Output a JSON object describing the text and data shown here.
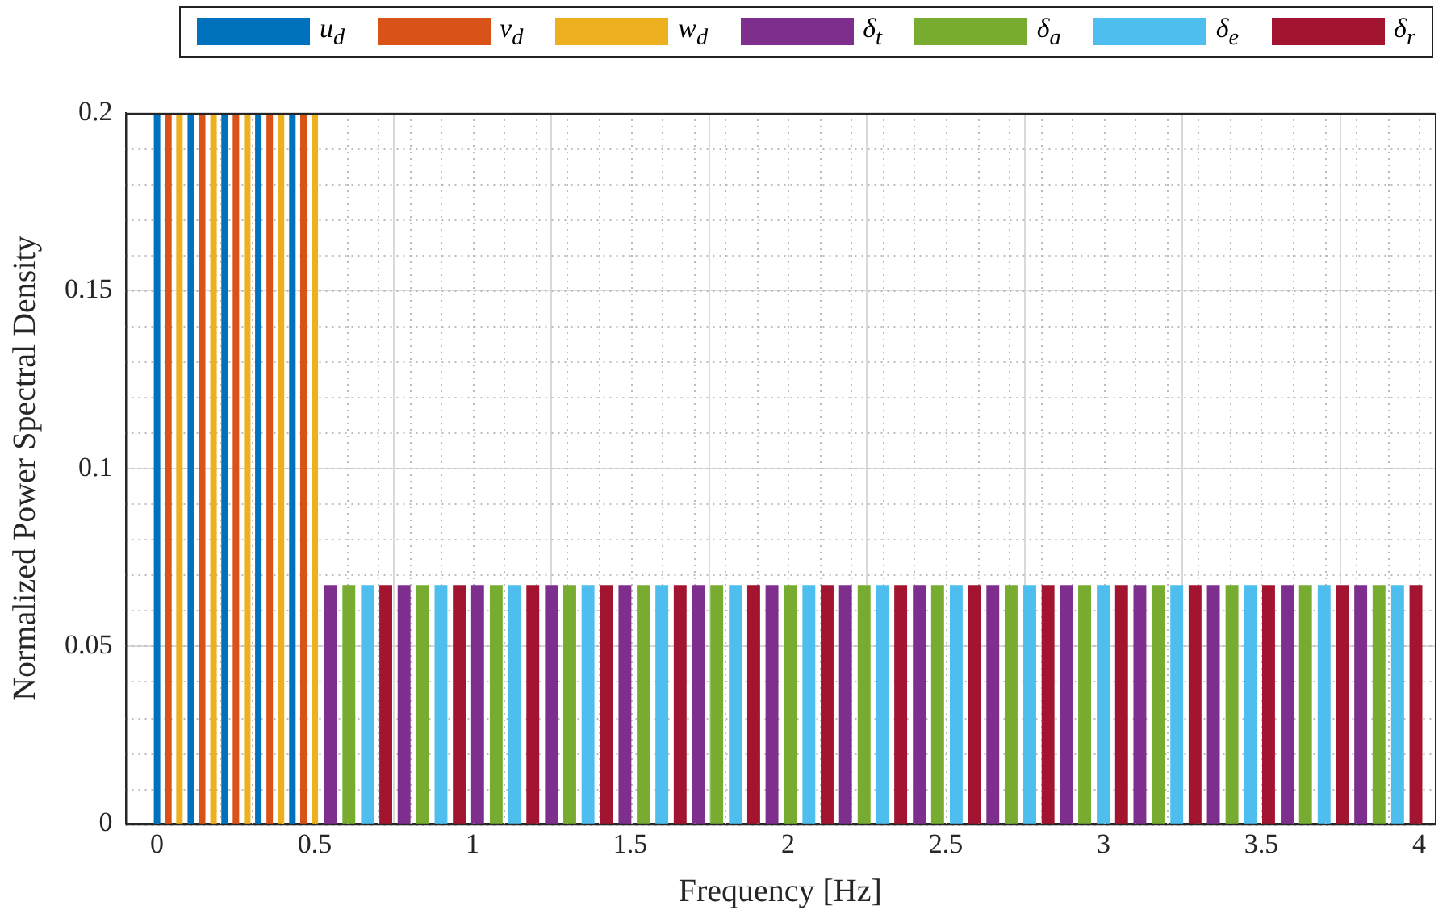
{
  "chart_data": {
    "type": "bar",
    "xlabel": "Frequency [Hz]",
    "ylabel": "Normalized Power Spectral Density",
    "xlim": [
      -0.1,
      4.05
    ],
    "ylim": [
      0,
      0.2
    ],
    "xticks": [
      0,
      0.5,
      1,
      1.5,
      2,
      2.5,
      3,
      3.5,
      4
    ],
    "yticks": [
      0,
      0.05,
      0.1,
      0.15,
      0.2
    ],
    "grid": true,
    "legend": "top",
    "series": [
      {
        "name": "u$_{d}$",
        "color": "#0072bd",
        "x": [
          0,
          0.107,
          0.214,
          0.321,
          0.429
        ],
        "values": [
          0.2,
          0.2,
          0.2,
          0.2,
          0.2
        ]
      },
      {
        "name": "v$_{d}$",
        "color": "#d95319",
        "x": [
          0.036,
          0.143,
          0.25,
          0.357,
          0.464
        ],
        "values": [
          0.2,
          0.2,
          0.2,
          0.2,
          0.2
        ]
      },
      {
        "name": "w$_{d}$",
        "color": "#edb120",
        "x": [
          0.071,
          0.179,
          0.286,
          0.393,
          0.5
        ],
        "values": [
          0.2,
          0.2,
          0.2,
          0.2,
          0.2
        ]
      },
      {
        "name": "δ$_{t}$",
        "color": "#7e2f8e",
        "x": [
          0.55,
          0.783,
          1.016,
          1.25,
          1.483,
          1.716,
          1.949,
          2.182,
          2.416,
          2.649,
          2.882,
          3.115,
          3.348,
          3.582,
          3.815
        ],
        "values": [
          0.067,
          0.067,
          0.067,
          0.067,
          0.067,
          0.067,
          0.067,
          0.067,
          0.067,
          0.067,
          0.067,
          0.067,
          0.067,
          0.067,
          0.067
        ]
      },
      {
        "name": "δ$_{a}$",
        "color": "#77ac30",
        "x": [
          0.608,
          0.841,
          1.075,
          1.308,
          1.541,
          1.774,
          2.007,
          2.241,
          2.474,
          2.707,
          2.94,
          3.173,
          3.407,
          3.64,
          3.873
        ],
        "values": [
          0.067,
          0.067,
          0.067,
          0.067,
          0.067,
          0.067,
          0.067,
          0.067,
          0.067,
          0.067,
          0.067,
          0.067,
          0.067,
          0.067,
          0.067
        ]
      },
      {
        "name": "δ$_{e}$",
        "color": "#4dbeee",
        "x": [
          0.667,
          0.9,
          1.133,
          1.366,
          1.6,
          1.833,
          2.066,
          2.299,
          2.533,
          2.766,
          2.999,
          3.232,
          3.465,
          3.699,
          3.932
        ],
        "values": [
          0.067,
          0.067,
          0.067,
          0.067,
          0.067,
          0.067,
          0.067,
          0.067,
          0.067,
          0.067,
          0.067,
          0.067,
          0.067,
          0.067,
          0.067
        ]
      },
      {
        "name": "δ$_{r}$",
        "color": "#a2142f",
        "x": [
          0.725,
          0.958,
          1.191,
          1.425,
          1.658,
          1.891,
          2.124,
          2.357,
          2.591,
          2.824,
          3.057,
          3.29,
          3.523,
          3.757,
          3.99
        ],
        "values": [
          0.067,
          0.067,
          0.067,
          0.067,
          0.067,
          0.067,
          0.067,
          0.067,
          0.067,
          0.067,
          0.067,
          0.067,
          0.067,
          0.067,
          0.067
        ]
      }
    ]
  }
}
